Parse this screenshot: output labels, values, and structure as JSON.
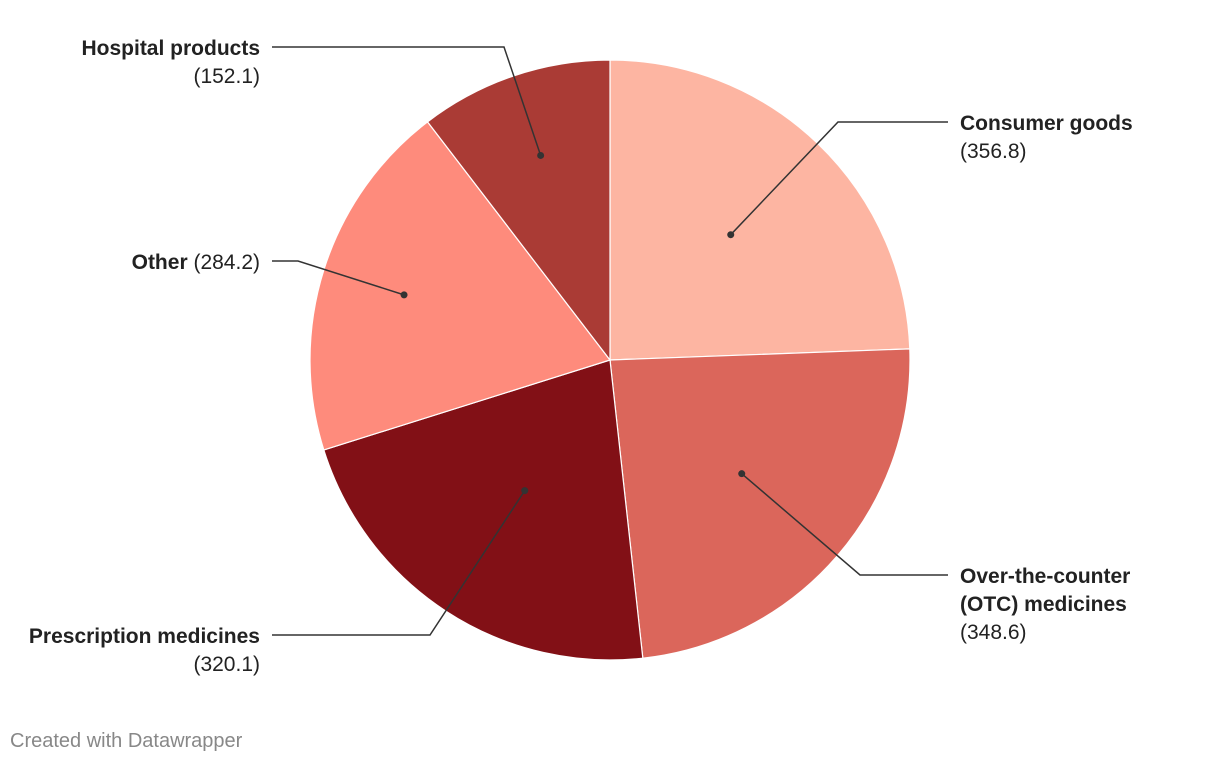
{
  "chart_data": {
    "type": "pie",
    "title": "",
    "slices": [
      {
        "label": "Consumer goods",
        "label_lines": [
          "Consumer goods"
        ],
        "value": 356.8,
        "value_text": "(356.8)",
        "color": "#fdb5a2"
      },
      {
        "label": "Over-the-counter (OTC) medicines",
        "label_lines": [
          "Over-the-counter",
          "(OTC) medicines"
        ],
        "value": 348.6,
        "value_text": "(348.6)",
        "color": "#db665b"
      },
      {
        "label": "Prescription medicines",
        "label_lines": [
          "Prescription medicines"
        ],
        "value": 320.1,
        "value_text": "(320.1)",
        "color": "#821016"
      },
      {
        "label": "Other",
        "label_lines": [
          "Other"
        ],
        "value": 284.2,
        "value_text": "(284.2)",
        "color": "#fe8b7c"
      },
      {
        "label": "Hospital products",
        "label_lines": [
          "Hospital products"
        ],
        "value": 152.1,
        "value_text": "(152.1)",
        "color": "#aa3b35"
      }
    ],
    "start": "12 o'clock",
    "direction": "clockwise",
    "legend": "none",
    "label_style": "external callouts"
  },
  "footer": {
    "credit": "Created with Datawrapper"
  }
}
